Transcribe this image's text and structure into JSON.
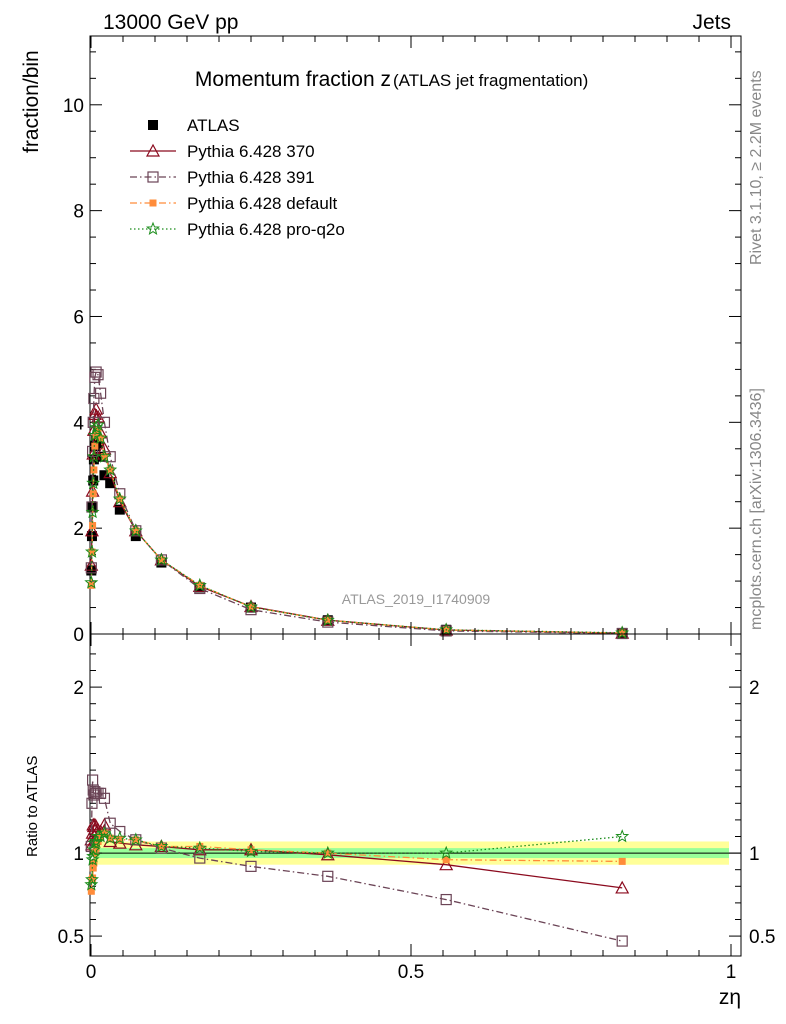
{
  "header": {
    "left": "13000 GeV pp",
    "right": "Jets"
  },
  "side_labels": {
    "rivet": "Rivet 3.1.10, ≥ 2.2M events",
    "mcplots": "mcplots.cern.ch [arXiv:1306.3436]"
  },
  "chart_data": [
    {
      "type": "line",
      "title": "Momentum fraction z",
      "subtitle": "(ATLAS jet fragmentation)",
      "xlabel": "zη",
      "ylabel": "fraction/bin",
      "watermark": "ATLAS_2019_I1740909",
      "xlim": [
        0,
        1
      ],
      "ylim": [
        0,
        11.3
      ],
      "x_ticks": [
        {
          "v": 0,
          "label": "0"
        },
        {
          "v": 0.5,
          "label": "0.5"
        },
        {
          "v": 1,
          "label": "1"
        }
      ],
      "y_ticks": [
        {
          "v": 0,
          "label": "0"
        },
        {
          "v": 2,
          "label": "2"
        },
        {
          "v": 4,
          "label": "4"
        },
        {
          "v": 6,
          "label": "6"
        },
        {
          "v": 8,
          "label": "8"
        },
        {
          "v": 10,
          "label": "10"
        }
      ],
      "x": [
        0.0005,
        0.0015,
        0.0025,
        0.0035,
        0.0045,
        0.006,
        0.008,
        0.011,
        0.015,
        0.021,
        0.03,
        0.045,
        0.07,
        0.11,
        0.17,
        0.25,
        0.37,
        0.555,
        0.83
      ],
      "series": [
        {
          "name": "ATLAS",
          "color": "#000000",
          "marker": "square-filled",
          "line": "none",
          "values": [
            1.2,
            1.85,
            2.4,
            2.9,
            3.3,
            3.55,
            3.65,
            3.6,
            3.35,
            3.0,
            2.85,
            2.35,
            1.85,
            1.35,
            0.88,
            0.5,
            0.26,
            0.08,
            0.02
          ]
        },
        {
          "name": "Pythia 6.428 370",
          "color": "#8b0a1e",
          "marker": "triangle-open",
          "line": "solid",
          "values": [
            1.3,
            1.95,
            2.7,
            3.4,
            3.85,
            4.15,
            4.25,
            4.1,
            3.8,
            3.5,
            3.05,
            2.5,
            1.95,
            1.4,
            0.9,
            0.52,
            0.26,
            0.075,
            0.016
          ]
        },
        {
          "name": "Pythia 6.428 391",
          "color": "#6b4456",
          "marker": "square-open",
          "line": "dashdot",
          "values": [
            1.25,
            2.4,
            3.45,
            4.0,
            4.45,
            4.85,
            4.95,
            4.9,
            4.55,
            4.0,
            3.35,
            2.65,
            1.95,
            1.4,
            0.86,
            0.46,
            0.225,
            0.058,
            0.009
          ]
        },
        {
          "name": "Pythia 6.428 default",
          "color": "#ff8c3a",
          "marker": "square-filled-small",
          "line": "dashdot",
          "values": [
            0.92,
            1.55,
            2.05,
            2.65,
            3.1,
            3.55,
            3.75,
            3.85,
            3.7,
            3.35,
            3.1,
            2.55,
            1.95,
            1.4,
            0.92,
            0.51,
            0.26,
            0.077,
            0.019
          ]
        },
        {
          "name": "Pythia 6.428 pro-q2o",
          "color": "#1a8c1a",
          "marker": "star",
          "line": "dotted",
          "values": [
            0.97,
            1.55,
            2.3,
            2.85,
            3.35,
            3.75,
            3.9,
            3.95,
            3.7,
            3.35,
            3.1,
            2.55,
            1.95,
            1.4,
            0.92,
            0.51,
            0.26,
            0.08,
            0.022
          ]
        }
      ]
    },
    {
      "type": "line",
      "ylabel": "Ratio to ATLAS",
      "xlim": [
        0,
        1
      ],
      "ylim": [
        0.38,
        2.32
      ],
      "y_ticks": [
        {
          "v": 0.5,
          "label": "0.5"
        },
        {
          "v": 1,
          "label": "1"
        },
        {
          "v": 2,
          "label": "2"
        }
      ],
      "band_green": 0.03,
      "band_yellow": 0.07,
      "x": [
        0.0005,
        0.0015,
        0.0025,
        0.0035,
        0.0045,
        0.006,
        0.008,
        0.011,
        0.015,
        0.021,
        0.03,
        0.045,
        0.07,
        0.11,
        0.17,
        0.25,
        0.37,
        0.555,
        0.83
      ],
      "series": [
        {
          "name": "Pythia 6.428 370",
          "values": [
            1.08,
            1.05,
            1.12,
            1.17,
            1.16,
            1.17,
            1.16,
            1.14,
            1.13,
            1.17,
            1.07,
            1.06,
            1.05,
            1.04,
            1.02,
            1.02,
            0.99,
            0.93,
            0.79
          ]
        },
        {
          "name": "Pythia 6.428 391",
          "values": [
            1.04,
            1.3,
            1.44,
            1.38,
            1.35,
            1.37,
            1.36,
            1.36,
            1.36,
            1.33,
            1.18,
            1.13,
            1.08,
            1.03,
            0.97,
            0.92,
            0.86,
            0.72,
            0.47
          ]
        },
        {
          "name": "Pythia 6.428 default",
          "values": [
            0.77,
            0.84,
            0.85,
            0.91,
            0.94,
            1.0,
            1.03,
            1.07,
            1.1,
            1.12,
            1.09,
            1.08,
            1.08,
            1.04,
            1.04,
            1.02,
            1.0,
            0.96,
            0.95
          ]
        },
        {
          "name": "Pythia 6.428 pro-q2o",
          "values": [
            0.81,
            0.84,
            0.96,
            0.98,
            1.02,
            1.06,
            1.07,
            1.1,
            1.1,
            1.12,
            1.09,
            1.09,
            1.08,
            1.04,
            1.03,
            1.01,
            1.0,
            1.0,
            1.1
          ]
        }
      ]
    }
  ]
}
